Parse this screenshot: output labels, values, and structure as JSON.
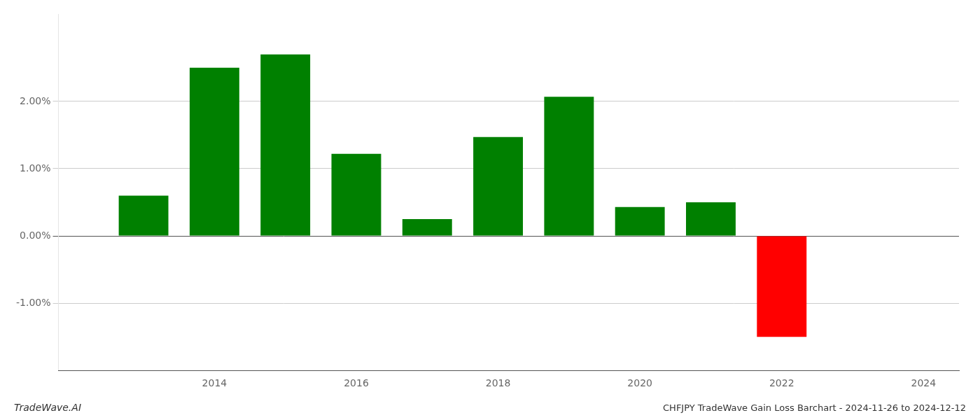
{
  "chart_data": {
    "type": "bar",
    "title": "CHFJPY TradeWave Gain Loss Barchart - 2024-11-26 to 2024-12-12",
    "annotations": [
      "TradeWave.AI"
    ],
    "x": [
      2013,
      2014,
      2015,
      2016,
      2017,
      2018,
      2019,
      2020,
      2021,
      2022
    ],
    "values": [
      0.6,
      2.5,
      2.7,
      1.22,
      0.25,
      1.47,
      2.07,
      0.43,
      0.5,
      -1.5
    ],
    "colors": [
      "#008000",
      "#008000",
      "#008000",
      "#008000",
      "#008000",
      "#008000",
      "#008000",
      "#008000",
      "#008000",
      "#ff0000"
    ],
    "xlim": [
      2011.8,
      2024.5
    ],
    "xticks": [
      2014,
      2016,
      2018,
      2020,
      2022,
      2024
    ],
    "ylim": [
      -2.0,
      3.3
    ],
    "yticks": [
      {
        "value": -1.0,
        "label": "-1.00%"
      },
      {
        "value": 0.0,
        "label": "0.00%"
      },
      {
        "value": 1.0,
        "label": "1.00%"
      },
      {
        "value": 2.0,
        "label": "2.00%"
      }
    ],
    "grid": true
  }
}
